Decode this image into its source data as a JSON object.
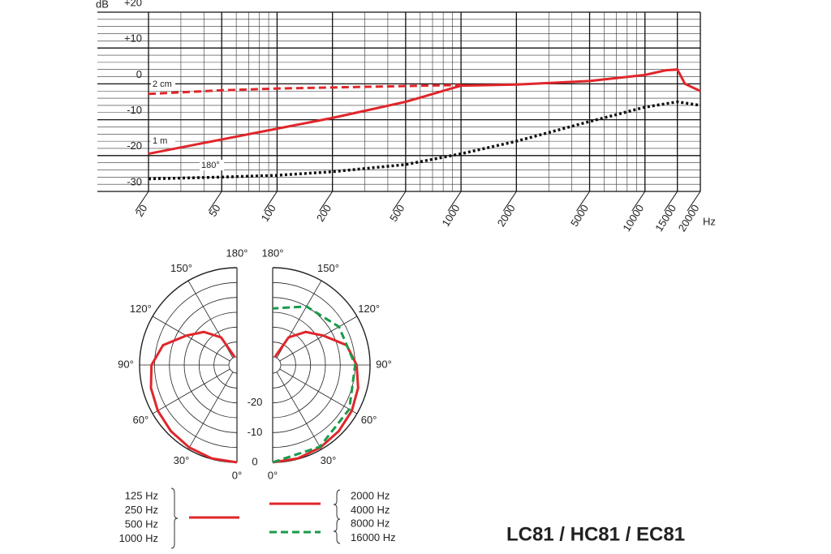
{
  "chart_data": [
    {
      "type": "line",
      "y_label": "dB",
      "x_label": "Hz",
      "log_x": true,
      "grid": true,
      "minor_grid": true,
      "xlim": [
        20,
        20000
      ],
      "ylim": [
        -30,
        20
      ],
      "xticks": [
        20,
        50,
        100,
        200,
        500,
        1000,
        2000,
        5000,
        10000,
        15000,
        20000
      ],
      "yticks": [
        {
          "value": 20,
          "label": "+20"
        },
        {
          "value": 10,
          "label": "+10"
        },
        0,
        -10,
        -20,
        -30
      ],
      "series": [
        {
          "name": "2 cm",
          "color": "#e0262b",
          "dash": "dashed",
          "x": [
            20,
            50,
            100,
            200,
            500,
            1000
          ],
          "values": [
            -2.8,
            -1.8,
            -1.3,
            -1,
            -0.6,
            -0.3
          ]
        },
        {
          "name": "1 m",
          "color": "#e0262b",
          "dash": "solid",
          "x": [
            20,
            50,
            100,
            200,
            500,
            1000,
            2000,
            5000,
            10000,
            13000,
            15000,
            16500,
            20000
          ],
          "values": [
            -19.5,
            -15.5,
            -12.5,
            -9.5,
            -5,
            -0.5,
            -0.2,
            0.8,
            2.5,
            3.8,
            4,
            0,
            -2
          ]
        },
        {
          "name": "180°",
          "color": "#111111",
          "dash": "dotted",
          "x": [
            20,
            50,
            100,
            200,
            500,
            1000,
            2000,
            5000,
            10000,
            15000,
            20000
          ],
          "values": [
            -26.5,
            -26,
            -25.5,
            -24.5,
            -22.5,
            -19.5,
            -16,
            -10.5,
            -6.5,
            -5,
            -6
          ]
        }
      ]
    },
    {
      "type": "polar",
      "rlim": [
        -30,
        0
      ],
      "rticks": [
        0,
        -10,
        -20
      ],
      "thetaticks": [
        {
          "value": 0,
          "label": "0°"
        },
        {
          "value": 30,
          "label": "30°"
        },
        {
          "value": 60,
          "label": "60°"
        },
        {
          "value": 90,
          "label": "90°"
        },
        {
          "value": 120,
          "label": "120°"
        },
        {
          "value": 150,
          "label": "150°"
        },
        {
          "value": 180,
          "label": "180°"
        }
      ],
      "series": [
        {
          "labels": [
            "125 Hz",
            "250 Hz",
            "500 Hz",
            "1000 Hz"
          ],
          "side": "left",
          "color": "#e0262b",
          "dash": "solid",
          "theta": [
            0,
            15,
            30,
            45,
            60,
            75,
            90,
            105,
            120,
            135,
            150,
            165
          ],
          "values": [
            0,
            -0.2,
            -0.7,
            -1.3,
            -2,
            -2.8,
            -4,
            -7,
            -13,
            -17,
            -22,
            -30
          ]
        },
        {
          "labels": [
            "2000 Hz",
            "4000 Hz"
          ],
          "side": "right",
          "color": "#e0262b",
          "dash": "solid",
          "theta": [
            0,
            15,
            30,
            45,
            60,
            75,
            90,
            105,
            120,
            135,
            150,
            165
          ],
          "values": [
            0,
            -0.2,
            -0.7,
            -1.3,
            -2,
            -3,
            -4.5,
            -7,
            -13,
            -17,
            -22,
            -30
          ]
        },
        {
          "labels": [
            "8000 Hz",
            "16000 Hz"
          ],
          "side": "right",
          "color": "#1a9a4a",
          "dash": "dashed",
          "theta": [
            0,
            30,
            60,
            90,
            120,
            150,
            180
          ],
          "values": [
            0,
            -1,
            -3,
            -5,
            -7,
            -10,
            -13.7
          ]
        }
      ]
    }
  ],
  "footer": {
    "title": "LC81 / HC81 / EC81"
  }
}
